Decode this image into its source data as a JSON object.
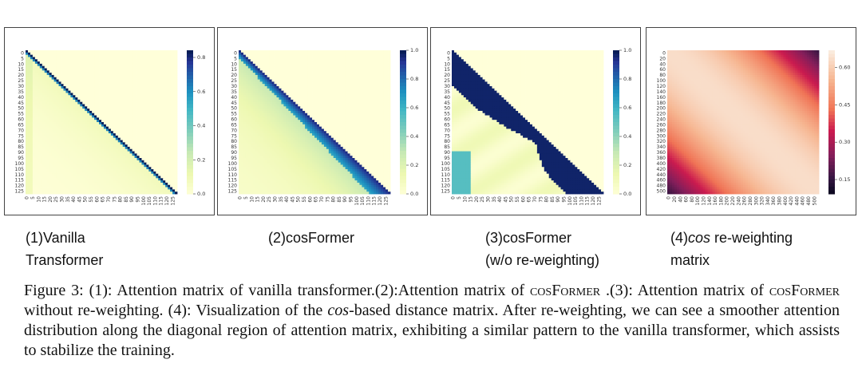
{
  "panels": [
    {
      "id": "vanilla",
      "row_ticks": [
        "0",
        "5",
        "10",
        "15",
        "20",
        "25",
        "30",
        "35",
        "40",
        "45",
        "50",
        "55",
        "60",
        "65",
        "70",
        "75",
        "80",
        "85",
        "90",
        "95",
        "100",
        "105",
        "110",
        "115",
        "120",
        "125"
      ],
      "col_ticks": [
        "0",
        "5",
        "10",
        "15",
        "20",
        "25",
        "30",
        "35",
        "40",
        "45",
        "50",
        "55",
        "60",
        "65",
        "70",
        "75",
        "80",
        "85",
        "90",
        "95",
        "100",
        "105",
        "110",
        "115",
        "120",
        "125"
      ],
      "colorbar_ticks": [
        "0.8",
        "0.6",
        "0.4",
        "0.2",
        "0.0"
      ],
      "colormap": "YlGnBu"
    },
    {
      "id": "cosformer",
      "row_ticks": [
        "0",
        "5",
        "10",
        "15",
        "20",
        "25",
        "30",
        "35",
        "40",
        "45",
        "50",
        "55",
        "60",
        "65",
        "70",
        "75",
        "80",
        "85",
        "90",
        "95",
        "100",
        "105",
        "110",
        "115",
        "120",
        "125"
      ],
      "col_ticks": [
        "0",
        "5",
        "10",
        "15",
        "20",
        "25",
        "30",
        "35",
        "40",
        "45",
        "50",
        "55",
        "60",
        "65",
        "70",
        "75",
        "80",
        "85",
        "90",
        "95",
        "100",
        "105",
        "110",
        "115",
        "120",
        "125"
      ],
      "colorbar_ticks": [
        "1.0",
        "0.8",
        "0.6",
        "0.4",
        "0.2",
        "0.0"
      ],
      "colormap": "YlGnBu"
    },
    {
      "id": "cosformer-no-reweight",
      "row_ticks": [
        "0",
        "5",
        "10",
        "15",
        "20",
        "25",
        "30",
        "35",
        "40",
        "45",
        "50",
        "55",
        "60",
        "65",
        "70",
        "75",
        "80",
        "85",
        "90",
        "95",
        "100",
        "105",
        "110",
        "115",
        "120",
        "125"
      ],
      "col_ticks": [
        "0",
        "5",
        "10",
        "15",
        "20",
        "25",
        "30",
        "35",
        "40",
        "45",
        "50",
        "55",
        "60",
        "65",
        "70",
        "75",
        "80",
        "85",
        "90",
        "95",
        "100",
        "105",
        "110",
        "115",
        "120",
        "125"
      ],
      "colorbar_ticks": [
        "1.0",
        "0.8",
        "0.6",
        "0.4",
        "0.2",
        "0.0"
      ],
      "colormap": "YlGnBu"
    },
    {
      "id": "cos-matrix",
      "row_ticks": [
        "0",
        "20",
        "40",
        "60",
        "80",
        "100",
        "120",
        "140",
        "160",
        "180",
        "200",
        "220",
        "240",
        "260",
        "280",
        "300",
        "320",
        "340",
        "360",
        "380",
        "400",
        "420",
        "440",
        "460",
        "480",
        "500"
      ],
      "col_ticks": [
        "0",
        "20",
        "40",
        "60",
        "80",
        "100",
        "120",
        "140",
        "160",
        "180",
        "200",
        "220",
        "240",
        "260",
        "280",
        "300",
        "320",
        "340",
        "360",
        "380",
        "400",
        "420",
        "440",
        "460",
        "480",
        "500"
      ],
      "colorbar_ticks": [
        "0.60",
        "0.45",
        "0.30",
        "0.15"
      ],
      "colormap": "rocket_r"
    }
  ],
  "subcaptions": {
    "s1_line1": "(1)Vanilla",
    "s1_line2": "Transformer",
    "s2": "(2)cosFormer",
    "s3_line1": "(3)cosFormer",
    "s3_line2": "(w/o re-weighting)",
    "s4_italic": "cos",
    "s4_prefix": "(4)",
    "s4_rest": " re-weighting",
    "s4_line2": "matrix"
  },
  "caption": {
    "p1": "Figure 3:  (1): Attention matrix of vanilla transformer.(2):Attention matrix of ",
    "sc1": "cosFormer",
    "p2": " .(3): Attention matrix of ",
    "sc2": "cosFormer",
    "p3": " without re-weighting. (4): Visualization of the ",
    "em": "cos",
    "p4": "-based distance matrix. After re-weighting, we can see a smoother attention distribution along the diagonal region of attention matrix, exhibiting a similar pattern to the vanilla transformer, which assists to stabilize the training."
  },
  "colors": {
    "ygb_light": "#ffffd9",
    "ygb_dark": "#081d58",
    "rocket_light": "#faebdd",
    "rocket_dark": "#03051a"
  }
}
